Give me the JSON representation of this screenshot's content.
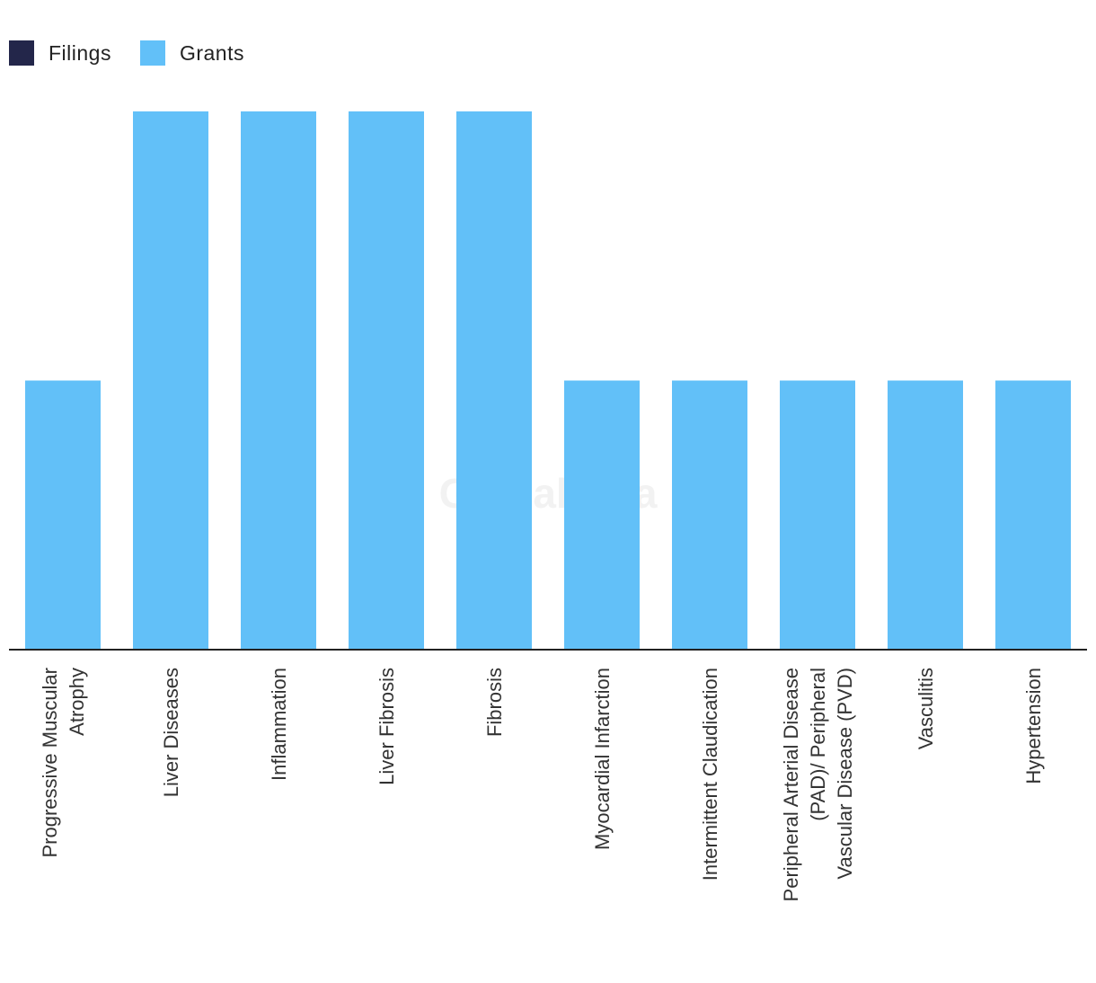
{
  "legend": [
    {
      "label": "Filings",
      "color": "#23264a"
    },
    {
      "label": "Grants",
      "color": "#62c0f8"
    }
  ],
  "watermark": "GlobalData",
  "chart_data": {
    "type": "bar",
    "categories": [
      [
        "Progressive Muscular",
        "Atrophy"
      ],
      [
        "Liver Diseases"
      ],
      [
        "Inflammation"
      ],
      [
        "Liver Fibrosis"
      ],
      [
        "Fibrosis"
      ],
      [
        "Myocardial Infarction"
      ],
      [
        "Intermittent Claudication"
      ],
      [
        "Peripheral Arterial Disease",
        "(PAD)/ Peripheral",
        "Vascular Disease (PVD)"
      ],
      [
        "Vasculitis"
      ],
      [
        "Hypertension"
      ]
    ],
    "series": [
      {
        "name": "Filings",
        "color": "#23264a",
        "values": [
          0,
          0,
          0,
          0,
          0,
          0,
          0,
          0,
          0,
          0
        ]
      },
      {
        "name": "Grants",
        "color": "#62c0f8",
        "values": [
          1,
          2,
          2,
          2,
          2,
          1,
          1,
          1,
          1,
          1
        ]
      }
    ],
    "ylim": [
      0,
      2
    ],
    "grid": false,
    "legend_position": "top-left"
  }
}
